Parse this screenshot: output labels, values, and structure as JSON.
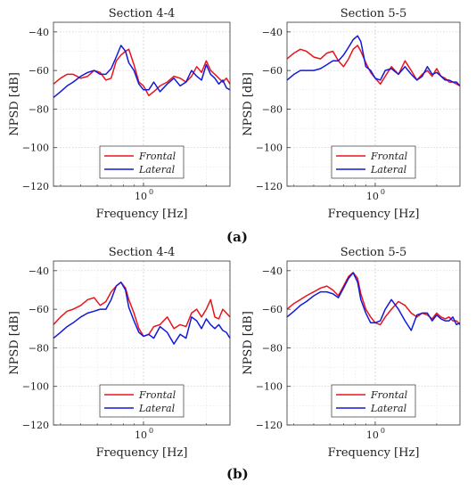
{
  "captions": [
    "(a)",
    "(b)"
  ],
  "chart_data": [
    {
      "type": "line",
      "title": "Section 4-4",
      "xlabel": "Frequency [Hz]",
      "ylabel": "NPSD [dB]",
      "x_scale": "log",
      "xlim": [
        0.37,
        2.6
      ],
      "ylim": [
        -120,
        -35
      ],
      "yticks": [
        -40,
        -60,
        -80,
        -100,
        -120
      ],
      "xticks": [
        {
          "value": 1.0,
          "label": "10"
        }
      ],
      "xtick_exponent": "0",
      "grid": true,
      "legend_position": "bottom-center",
      "series": [
        {
          "name": "Frontal",
          "color": "#e8141c",
          "x": [
            0.37,
            0.4,
            0.43,
            0.46,
            0.5,
            0.54,
            0.58,
            0.62,
            0.66,
            0.7,
            0.74,
            0.78,
            0.82,
            0.85,
            0.9,
            0.95,
            1.0,
            1.06,
            1.12,
            1.2,
            1.3,
            1.4,
            1.5,
            1.6,
            1.7,
            1.8,
            1.9,
            2.0,
            2.1,
            2.2,
            2.3,
            2.4,
            2.5,
            2.6
          ],
          "y": [
            -67,
            -64,
            -62,
            -62,
            -64,
            -63,
            -60,
            -61,
            -65,
            -64,
            -55,
            -52,
            -50,
            -49,
            -57,
            -66,
            -68,
            -73,
            -71,
            -68,
            -66,
            -63,
            -64,
            -66,
            -63,
            -58,
            -61,
            -55,
            -60,
            -62,
            -64,
            -66,
            -64,
            -67
          ]
        },
        {
          "name": "Lateral",
          "color": "#1418d8",
          "x": [
            0.37,
            0.4,
            0.43,
            0.46,
            0.5,
            0.54,
            0.58,
            0.62,
            0.66,
            0.7,
            0.74,
            0.78,
            0.82,
            0.85,
            0.9,
            0.95,
            1.0,
            1.06,
            1.12,
            1.2,
            1.3,
            1.4,
            1.5,
            1.6,
            1.7,
            1.8,
            1.9,
            2.0,
            2.1,
            2.2,
            2.3,
            2.4,
            2.5,
            2.6
          ],
          "y": [
            -74,
            -71,
            -68,
            -66,
            -63,
            -61,
            -60,
            -62,
            -62,
            -59,
            -53,
            -47,
            -50,
            -56,
            -60,
            -67,
            -70,
            -70,
            -66,
            -71,
            -67,
            -64,
            -68,
            -66,
            -60,
            -63,
            -65,
            -57,
            -62,
            -64,
            -67,
            -65,
            -69,
            -70
          ]
        }
      ]
    },
    {
      "type": "line",
      "title": "Section 5-5",
      "xlabel": "Frequency [Hz]",
      "ylabel": "",
      "x_scale": "log",
      "xlim": [
        0.37,
        2.6
      ],
      "ylim": [
        -120,
        -35
      ],
      "yticks": [
        -40,
        -60,
        -80,
        -100,
        -120
      ],
      "xticks": [
        {
          "value": 1.0,
          "label": "10"
        }
      ],
      "xtick_exponent": "0",
      "grid": true,
      "legend_position": "bottom-center",
      "series": [
        {
          "name": "Frontal",
          "color": "#e8141c",
          "x": [
            0.37,
            0.4,
            0.43,
            0.46,
            0.5,
            0.54,
            0.58,
            0.62,
            0.66,
            0.7,
            0.74,
            0.78,
            0.82,
            0.85,
            0.9,
            0.95,
            1.0,
            1.06,
            1.12,
            1.2,
            1.3,
            1.4,
            1.5,
            1.6,
            1.7,
            1.8,
            1.9,
            2.0,
            2.1,
            2.2,
            2.3,
            2.4,
            2.5,
            2.6
          ],
          "y": [
            -54,
            -51,
            -49,
            -50,
            -53,
            -54,
            -51,
            -50,
            -55,
            -58,
            -54,
            -49,
            -47,
            -50,
            -56,
            -61,
            -64,
            -67,
            -63,
            -58,
            -62,
            -55,
            -60,
            -65,
            -62,
            -60,
            -63,
            -59,
            -63,
            -64,
            -66,
            -66,
            -67,
            -68
          ]
        },
        {
          "name": "Lateral",
          "color": "#1418d8",
          "x": [
            0.37,
            0.4,
            0.43,
            0.46,
            0.5,
            0.54,
            0.58,
            0.62,
            0.66,
            0.7,
            0.74,
            0.78,
            0.82,
            0.85,
            0.9,
            0.95,
            1.0,
            1.06,
            1.12,
            1.2,
            1.3,
            1.4,
            1.5,
            1.6,
            1.7,
            1.8,
            1.9,
            2.0,
            2.1,
            2.2,
            2.3,
            2.4,
            2.5,
            2.6
          ],
          "y": [
            -65,
            -62,
            -60,
            -60,
            -60,
            -59,
            -57,
            -55,
            -55,
            -52,
            -48,
            -44,
            -42,
            -45,
            -58,
            -60,
            -64,
            -65,
            -60,
            -59,
            -62,
            -58,
            -62,
            -65,
            -63,
            -58,
            -62,
            -61,
            -63,
            -65,
            -65,
            -66,
            -66,
            -68
          ]
        }
      ]
    },
    {
      "type": "line",
      "title": "Section 4-4",
      "xlabel": "Frequency [Hz]",
      "ylabel": "NPSD [dB]",
      "x_scale": "log",
      "xlim": [
        0.37,
        2.6
      ],
      "ylim": [
        -120,
        -35
      ],
      "yticks": [
        -40,
        -60,
        -80,
        -100,
        -120
      ],
      "xticks": [
        {
          "value": 1.0,
          "label": "10"
        }
      ],
      "xtick_exponent": "0",
      "grid": true,
      "legend_position": "bottom-center",
      "series": [
        {
          "name": "Frontal",
          "color": "#e8141c",
          "x": [
            0.37,
            0.4,
            0.43,
            0.46,
            0.5,
            0.54,
            0.58,
            0.62,
            0.66,
            0.7,
            0.74,
            0.78,
            0.82,
            0.85,
            0.9,
            0.95,
            1.0,
            1.06,
            1.12,
            1.2,
            1.3,
            1.4,
            1.5,
            1.6,
            1.7,
            1.8,
            1.9,
            2.0,
            2.1,
            2.2,
            2.3,
            2.4,
            2.5,
            2.6
          ],
          "y": [
            -68,
            -64,
            -61,
            -60,
            -58,
            -55,
            -54,
            -58,
            -56,
            -51,
            -48,
            -46,
            -49,
            -55,
            -62,
            -70,
            -74,
            -73,
            -69,
            -68,
            -64,
            -70,
            -68,
            -69,
            -62,
            -60,
            -64,
            -60,
            -55,
            -64,
            -65,
            -60,
            -62,
            -64
          ]
        },
        {
          "name": "Lateral",
          "color": "#1418d8",
          "x": [
            0.37,
            0.4,
            0.43,
            0.46,
            0.5,
            0.54,
            0.58,
            0.62,
            0.66,
            0.7,
            0.74,
            0.78,
            0.82,
            0.85,
            0.9,
            0.95,
            1.0,
            1.06,
            1.12,
            1.2,
            1.3,
            1.4,
            1.5,
            1.6,
            1.7,
            1.8,
            1.9,
            2.0,
            2.1,
            2.2,
            2.3,
            2.4,
            2.5,
            2.6
          ],
          "y": [
            -75,
            -72,
            -69,
            -67,
            -64,
            -62,
            -61,
            -60,
            -60,
            -55,
            -48,
            -46,
            -50,
            -59,
            -66,
            -72,
            -74,
            -73,
            -75,
            -69,
            -72,
            -78,
            -73,
            -75,
            -64,
            -66,
            -70,
            -65,
            -68,
            -70,
            -68,
            -71,
            -72,
            -75
          ]
        }
      ]
    },
    {
      "type": "line",
      "title": "Section 5-5",
      "xlabel": "Frequency [Hz]",
      "ylabel": "",
      "x_scale": "log",
      "xlim": [
        0.37,
        2.6
      ],
      "ylim": [
        -120,
        -35
      ],
      "yticks": [
        -40,
        -60,
        -80,
        -100,
        -120
      ],
      "xticks": [
        {
          "value": 1.0,
          "label": "10"
        }
      ],
      "xtick_exponent": "0",
      "grid": true,
      "legend_position": "bottom-center",
      "series": [
        {
          "name": "Frontal",
          "color": "#e8141c",
          "x": [
            0.37,
            0.4,
            0.43,
            0.46,
            0.5,
            0.54,
            0.58,
            0.62,
            0.66,
            0.7,
            0.74,
            0.78,
            0.82,
            0.85,
            0.9,
            0.95,
            1.0,
            1.06,
            1.12,
            1.2,
            1.3,
            1.4,
            1.5,
            1.6,
            1.7,
            1.8,
            1.9,
            2.0,
            2.1,
            2.2,
            2.3,
            2.4,
            2.5,
            2.6
          ],
          "y": [
            -60,
            -57,
            -55,
            -53,
            -51,
            -49,
            -48,
            -50,
            -53,
            -48,
            -43,
            -41,
            -44,
            -52,
            -60,
            -64,
            -67,
            -68,
            -64,
            -60,
            -56,
            -58,
            -62,
            -64,
            -62,
            -63,
            -65,
            -62,
            -64,
            -65,
            -64,
            -66,
            -66,
            -68
          ]
        },
        {
          "name": "Lateral",
          "color": "#1418d8",
          "x": [
            0.37,
            0.4,
            0.43,
            0.46,
            0.5,
            0.54,
            0.58,
            0.62,
            0.66,
            0.7,
            0.74,
            0.78,
            0.82,
            0.85,
            0.9,
            0.95,
            1.0,
            1.06,
            1.12,
            1.2,
            1.3,
            1.4,
            1.5,
            1.6,
            1.7,
            1.8,
            1.9,
            2.0,
            2.1,
            2.2,
            2.3,
            2.4,
            2.5,
            2.6
          ],
          "y": [
            -64,
            -61,
            -58,
            -56,
            -53,
            -51,
            -51,
            -52,
            -54,
            -49,
            -44,
            -41,
            -46,
            -55,
            -62,
            -67,
            -67,
            -66,
            -60,
            -55,
            -60,
            -66,
            -71,
            -63,
            -62,
            -62,
            -66,
            -63,
            -65,
            -66,
            -66,
            -64,
            -68,
            -67
          ]
        }
      ]
    }
  ]
}
